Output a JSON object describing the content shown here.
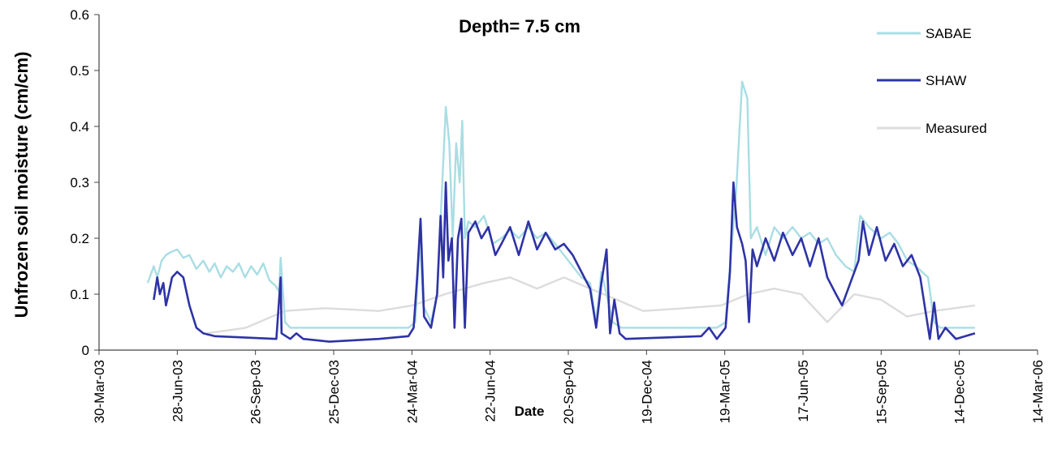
{
  "chart_data": {
    "type": "line",
    "title": "Depth= 7.5 cm",
    "xlabel": "Date",
    "ylabel": "Unfrozen soil moisture (cm/cm)",
    "ylim": [
      0,
      0.6
    ],
    "yticks": [
      "0",
      "0.1",
      "0.2",
      "0.3",
      "0.4",
      "0.5",
      "0.6"
    ],
    "xlim": [
      "2003-03-30",
      "2006-03-14"
    ],
    "xticks": [
      "30-Mar-03",
      "28-Jun-03",
      "26-Sep-03",
      "25-Dec-03",
      "24-Mar-04",
      "22-Jun-04",
      "20-Sep-04",
      "19-Dec-04",
      "19-Mar-05",
      "17-Jun-05",
      "15-Sep-05",
      "14-Dec-05",
      "14-Mar-06"
    ],
    "grid": false,
    "legend_position": "right",
    "series": [
      {
        "name": "SABAE",
        "color": "#a9dde3",
        "points": [
          [
            "2003-05-25",
            0.12
          ],
          [
            "2003-06-01",
            0.15
          ],
          [
            "2003-06-05",
            0.13
          ],
          [
            "2003-06-10",
            0.16
          ],
          [
            "2003-06-15",
            0.17
          ],
          [
            "2003-06-20",
            0.175
          ],
          [
            "2003-06-28",
            0.18
          ],
          [
            "2003-07-05",
            0.165
          ],
          [
            "2003-07-12",
            0.17
          ],
          [
            "2003-07-20",
            0.145
          ],
          [
            "2003-07-28",
            0.16
          ],
          [
            "2003-08-04",
            0.14
          ],
          [
            "2003-08-10",
            0.155
          ],
          [
            "2003-08-17",
            0.13
          ],
          [
            "2003-08-24",
            0.15
          ],
          [
            "2003-08-31",
            0.14
          ],
          [
            "2003-09-07",
            0.155
          ],
          [
            "2003-09-14",
            0.13
          ],
          [
            "2003-09-21",
            0.15
          ],
          [
            "2003-09-28",
            0.135
          ],
          [
            "2003-10-05",
            0.155
          ],
          [
            "2003-10-12",
            0.125
          ],
          [
            "2003-10-19",
            0.115
          ],
          [
            "2003-10-23",
            0.105
          ],
          [
            "2003-10-25",
            0.165
          ],
          [
            "2003-10-27",
            0.12
          ],
          [
            "2003-10-30",
            0.05
          ],
          [
            "2003-11-05",
            0.04
          ],
          [
            "2004-01-15",
            0.04
          ],
          [
            "2004-03-20",
            0.04
          ],
          [
            "2004-03-28",
            0.05
          ],
          [
            "2004-04-02",
            0.2
          ],
          [
            "2004-04-06",
            0.08
          ],
          [
            "2004-04-15",
            0.05
          ],
          [
            "2004-04-22",
            0.1
          ],
          [
            "2004-04-28",
            0.3
          ],
          [
            "2004-05-02",
            0.435
          ],
          [
            "2004-05-06",
            0.37
          ],
          [
            "2004-05-10",
            0.2
          ],
          [
            "2004-05-14",
            0.37
          ],
          [
            "2004-05-18",
            0.3
          ],
          [
            "2004-05-21",
            0.41
          ],
          [
            "2004-05-24",
            0.2
          ],
          [
            "2004-05-28",
            0.23
          ],
          [
            "2004-06-05",
            0.22
          ],
          [
            "2004-06-15",
            0.24
          ],
          [
            "2004-06-25",
            0.19
          ],
          [
            "2004-07-05",
            0.2
          ],
          [
            "2004-07-15",
            0.215
          ],
          [
            "2004-07-25",
            0.2
          ],
          [
            "2004-08-05",
            0.22
          ],
          [
            "2004-08-15",
            0.2
          ],
          [
            "2004-08-25",
            0.21
          ],
          [
            "2004-09-05",
            0.19
          ],
          [
            "2004-09-15",
            0.17
          ],
          [
            "2004-09-25",
            0.15
          ],
          [
            "2004-10-05",
            0.13
          ],
          [
            "2004-10-15",
            0.12
          ],
          [
            "2004-10-22",
            0.05
          ],
          [
            "2004-10-28",
            0.14
          ],
          [
            "2004-11-03",
            0.1
          ],
          [
            "2004-11-10",
            0.05
          ],
          [
            "2004-11-20",
            0.04
          ],
          [
            "2005-01-15",
            0.04
          ],
          [
            "2005-03-10",
            0.04
          ],
          [
            "2005-03-20",
            0.05
          ],
          [
            "2005-03-25",
            0.15
          ],
          [
            "2005-04-01",
            0.28
          ],
          [
            "2005-04-08",
            0.48
          ],
          [
            "2005-04-14",
            0.45
          ],
          [
            "2005-04-18",
            0.2
          ],
          [
            "2005-04-25",
            0.22
          ],
          [
            "2005-05-05",
            0.17
          ],
          [
            "2005-05-15",
            0.22
          ],
          [
            "2005-05-25",
            0.2
          ],
          [
            "2005-06-05",
            0.22
          ],
          [
            "2005-06-15",
            0.2
          ],
          [
            "2005-06-25",
            0.21
          ],
          [
            "2005-07-05",
            0.19
          ],
          [
            "2005-07-15",
            0.2
          ],
          [
            "2005-07-25",
            0.17
          ],
          [
            "2005-08-05",
            0.15
          ],
          [
            "2005-08-15",
            0.14
          ],
          [
            "2005-08-22",
            0.24
          ],
          [
            "2005-09-01",
            0.22
          ],
          [
            "2005-09-15",
            0.2
          ],
          [
            "2005-09-25",
            0.21
          ],
          [
            "2005-10-05",
            0.19
          ],
          [
            "2005-10-15",
            0.16
          ],
          [
            "2005-10-25",
            0.15
          ],
          [
            "2005-11-01",
            0.14
          ],
          [
            "2005-11-08",
            0.13
          ],
          [
            "2005-11-15",
            0.05
          ],
          [
            "2005-11-22",
            0.04
          ],
          [
            "2006-01-01",
            0.04
          ]
        ]
      },
      {
        "name": "SHAW",
        "color": "#2e33a6",
        "points": [
          [
            "2003-06-01",
            0.09
          ],
          [
            "2003-06-05",
            0.13
          ],
          [
            "2003-06-08",
            0.1
          ],
          [
            "2003-06-12",
            0.12
          ],
          [
            "2003-06-15",
            0.08
          ],
          [
            "2003-06-18",
            0.1
          ],
          [
            "2003-06-22",
            0.13
          ],
          [
            "2003-06-28",
            0.14
          ],
          [
            "2003-07-05",
            0.13
          ],
          [
            "2003-07-12",
            0.08
          ],
          [
            "2003-07-20",
            0.04
          ],
          [
            "2003-07-28",
            0.03
          ],
          [
            "2003-08-10",
            0.025
          ],
          [
            "2003-10-20",
            0.02
          ],
          [
            "2003-10-25",
            0.13
          ],
          [
            "2003-10-26",
            0.03
          ],
          [
            "2003-11-05",
            0.02
          ],
          [
            "2003-11-12",
            0.03
          ],
          [
            "2003-11-20",
            0.02
          ],
          [
            "2003-12-20",
            0.015
          ],
          [
            "2004-02-15",
            0.02
          ],
          [
            "2004-03-20",
            0.025
          ],
          [
            "2004-03-26",
            0.04
          ],
          [
            "2004-03-30",
            0.13
          ],
          [
            "2004-04-03",
            0.235
          ],
          [
            "2004-04-07",
            0.06
          ],
          [
            "2004-04-15",
            0.04
          ],
          [
            "2004-04-22",
            0.1
          ],
          [
            "2004-04-26",
            0.24
          ],
          [
            "2004-04-29",
            0.13
          ],
          [
            "2004-05-02",
            0.3
          ],
          [
            "2004-05-05",
            0.16
          ],
          [
            "2004-05-09",
            0.2
          ],
          [
            "2004-05-12",
            0.04
          ],
          [
            "2004-05-16",
            0.2
          ],
          [
            "2004-05-20",
            0.235
          ],
          [
            "2004-05-24",
            0.04
          ],
          [
            "2004-05-28",
            0.21
          ],
          [
            "2004-06-05",
            0.23
          ],
          [
            "2004-06-12",
            0.2
          ],
          [
            "2004-06-20",
            0.22
          ],
          [
            "2004-06-28",
            0.17
          ],
          [
            "2004-07-05",
            0.19
          ],
          [
            "2004-07-15",
            0.22
          ],
          [
            "2004-07-25",
            0.17
          ],
          [
            "2004-08-05",
            0.23
          ],
          [
            "2004-08-15",
            0.18
          ],
          [
            "2004-08-25",
            0.21
          ],
          [
            "2004-09-05",
            0.18
          ],
          [
            "2004-09-15",
            0.19
          ],
          [
            "2004-09-25",
            0.17
          ],
          [
            "2004-10-05",
            0.14
          ],
          [
            "2004-10-15",
            0.11
          ],
          [
            "2004-10-22",
            0.04
          ],
          [
            "2004-10-28",
            0.12
          ],
          [
            "2004-11-03",
            0.18
          ],
          [
            "2004-11-07",
            0.03
          ],
          [
            "2004-11-12",
            0.09
          ],
          [
            "2004-11-18",
            0.03
          ],
          [
            "2004-11-25",
            0.02
          ],
          [
            "2005-02-20",
            0.025
          ],
          [
            "2005-03-01",
            0.04
          ],
          [
            "2005-03-10",
            0.02
          ],
          [
            "2005-03-20",
            0.04
          ],
          [
            "2005-03-25",
            0.14
          ],
          [
            "2005-03-29",
            0.3
          ],
          [
            "2005-04-02",
            0.22
          ],
          [
            "2005-04-08",
            0.19
          ],
          [
            "2005-04-12",
            0.16
          ],
          [
            "2005-04-16",
            0.05
          ],
          [
            "2005-04-20",
            0.18
          ],
          [
            "2005-04-25",
            0.15
          ],
          [
            "2005-05-05",
            0.2
          ],
          [
            "2005-05-15",
            0.16
          ],
          [
            "2005-05-25",
            0.21
          ],
          [
            "2005-06-05",
            0.17
          ],
          [
            "2005-06-15",
            0.2
          ],
          [
            "2005-06-25",
            0.15
          ],
          [
            "2005-07-05",
            0.2
          ],
          [
            "2005-07-15",
            0.13
          ],
          [
            "2005-07-25",
            0.1
          ],
          [
            "2005-08-01",
            0.08
          ],
          [
            "2005-08-20",
            0.16
          ],
          [
            "2005-08-25",
            0.23
          ],
          [
            "2005-09-01",
            0.17
          ],
          [
            "2005-09-10",
            0.22
          ],
          [
            "2005-09-20",
            0.16
          ],
          [
            "2005-09-30",
            0.19
          ],
          [
            "2005-10-10",
            0.15
          ],
          [
            "2005-10-20",
            0.17
          ],
          [
            "2005-10-30",
            0.13
          ],
          [
            "2005-11-05",
            0.07
          ],
          [
            "2005-11-10",
            0.02
          ],
          [
            "2005-11-15",
            0.085
          ],
          [
            "2005-11-20",
            0.02
          ],
          [
            "2005-11-28",
            0.04
          ],
          [
            "2005-12-10",
            0.02
          ],
          [
            "2006-01-01",
            0.03
          ]
        ]
      },
      {
        "name": "Measured",
        "color": "#dcdcdc",
        "points": [
          [
            "2003-08-01",
            0.03
          ],
          [
            "2003-09-15",
            0.04
          ],
          [
            "2003-10-30",
            0.07
          ],
          [
            "2003-12-15",
            0.075
          ],
          [
            "2004-02-15",
            0.07
          ],
          [
            "2004-03-25",
            0.08
          ],
          [
            "2004-05-01",
            0.1
          ],
          [
            "2004-06-15",
            0.12
          ],
          [
            "2004-07-15",
            0.13
          ],
          [
            "2004-08-15",
            0.11
          ],
          [
            "2004-09-15",
            0.13
          ],
          [
            "2004-10-15",
            0.11
          ],
          [
            "2004-11-15",
            0.09
          ],
          [
            "2004-12-15",
            0.07
          ],
          [
            "2005-02-01",
            0.075
          ],
          [
            "2005-03-15",
            0.08
          ],
          [
            "2005-04-15",
            0.1
          ],
          [
            "2005-05-15",
            0.11
          ],
          [
            "2005-06-15",
            0.1
          ],
          [
            "2005-07-15",
            0.05
          ],
          [
            "2005-08-15",
            0.1
          ],
          [
            "2005-09-15",
            0.09
          ],
          [
            "2005-10-15",
            0.06
          ],
          [
            "2005-11-15",
            0.07
          ],
          [
            "2006-01-01",
            0.08
          ]
        ]
      }
    ]
  }
}
